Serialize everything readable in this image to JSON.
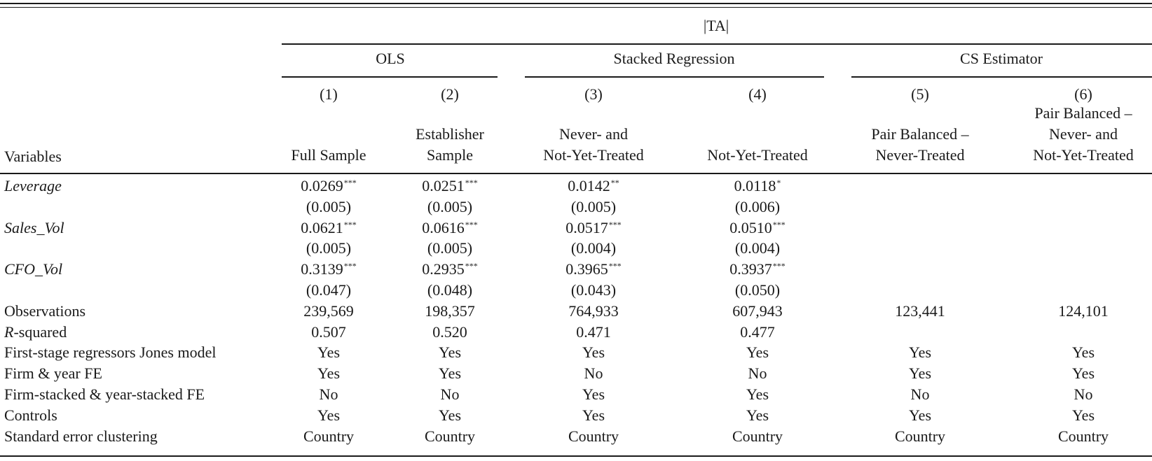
{
  "table": {
    "dependent_var": "|TA|",
    "groups": [
      "OLS",
      "Stacked Regression",
      "CS Estimator"
    ],
    "column_numbers": [
      "(1)",
      "(2)",
      "(3)",
      "(4)",
      "(5)",
      "(6)"
    ],
    "column_subheaders": [
      [
        "Full Sample"
      ],
      [
        "Establisher",
        "Sample"
      ],
      [
        "Never- and",
        "Not-Yet-Treated"
      ],
      [
        "Not-Yet-Treated"
      ],
      [
        "Pair Balanced –",
        "Never-Treated"
      ],
      [
        "Pair Balanced –",
        "Never- and",
        "Not-Yet-Treated"
      ]
    ],
    "variables_header": "Variables",
    "coef_rows": [
      {
        "label": "Leverage",
        "coefs": [
          {
            "v": "0.0269",
            "s": "***"
          },
          {
            "v": "0.0251",
            "s": "***"
          },
          {
            "v": "0.0142",
            "s": "**"
          },
          {
            "v": "0.0118",
            "s": "*"
          },
          {
            "v": "",
            "s": ""
          },
          {
            "v": "",
            "s": ""
          }
        ],
        "se": [
          "(0.005)",
          "(0.005)",
          "(0.005)",
          "(0.006)",
          "",
          ""
        ]
      },
      {
        "label": "Sales_Vol",
        "coefs": [
          {
            "v": "0.0621",
            "s": "***"
          },
          {
            "v": "0.0616",
            "s": "***"
          },
          {
            "v": "0.0517",
            "s": "***"
          },
          {
            "v": "0.0510",
            "s": "***"
          },
          {
            "v": "",
            "s": ""
          },
          {
            "v": "",
            "s": ""
          }
        ],
        "se": [
          "(0.005)",
          "(0.005)",
          "(0.004)",
          "(0.004)",
          "",
          ""
        ]
      },
      {
        "label": "CFO_Vol",
        "coefs": [
          {
            "v": "0.3139",
            "s": "***"
          },
          {
            "v": "0.2935",
            "s": "***"
          },
          {
            "v": "0.3965",
            "s": "***"
          },
          {
            "v": "0.3937",
            "s": "***"
          },
          {
            "v": "",
            "s": ""
          },
          {
            "v": "",
            "s": ""
          }
        ],
        "se": [
          "(0.047)",
          "(0.048)",
          "(0.043)",
          "(0.050)",
          "",
          ""
        ]
      }
    ],
    "rsq_prefix": "R",
    "rsq_suffix": "-squared",
    "rsq_values": [
      "0.507",
      "0.520",
      "0.471",
      "0.477",
      "",
      ""
    ],
    "stat_rows": [
      {
        "label": "Observations",
        "values": [
          "239,569",
          "198,357",
          "764,933",
          "607,943",
          "123,441",
          "124,101"
        ]
      },
      {
        "label": "First-stage regressors Jones model",
        "values": [
          "Yes",
          "Yes",
          "Yes",
          "Yes",
          "Yes",
          "Yes"
        ]
      },
      {
        "label": "Firm & year FE",
        "values": [
          "Yes",
          "Yes",
          "No",
          "No",
          "Yes",
          "Yes"
        ]
      },
      {
        "label": "Firm-stacked & year-stacked FE",
        "values": [
          "No",
          "No",
          "Yes",
          "Yes",
          "No",
          "No"
        ]
      },
      {
        "label": "Controls",
        "values": [
          "Yes",
          "Yes",
          "Yes",
          "Yes",
          "Yes",
          "Yes"
        ]
      },
      {
        "label": "Standard error clustering",
        "values": [
          "Country",
          "Country",
          "Country",
          "Country",
          "Country",
          "Country"
        ]
      }
    ]
  }
}
